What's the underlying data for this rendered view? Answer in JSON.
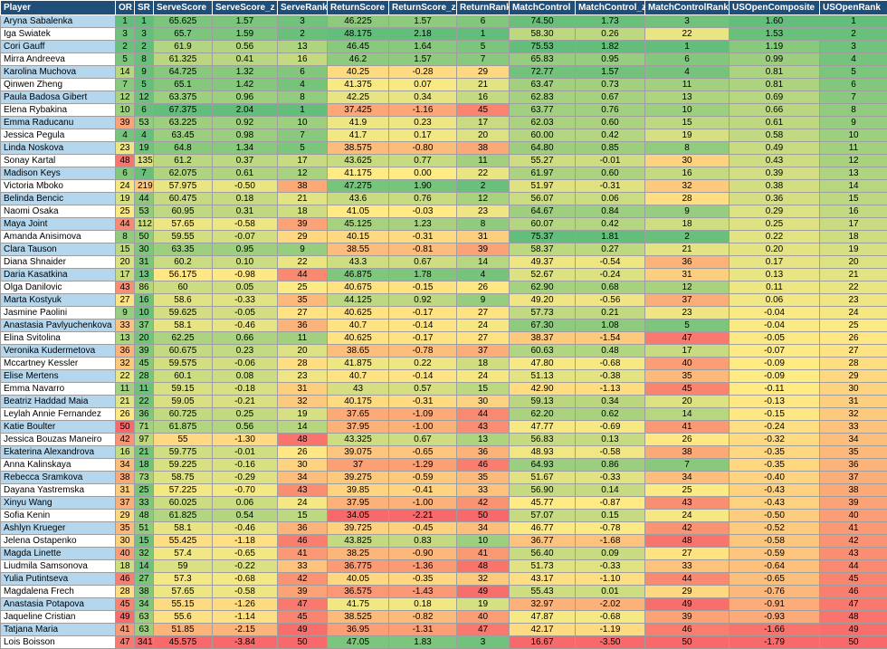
{
  "headers": [
    "Player",
    "OR",
    "SR",
    "ServeScore",
    "ServeScore_z",
    "ServeRank",
    "ReturnScore",
    "ReturnScore_z",
    "ReturnRank",
    "MatchControl",
    "MatchControl_z",
    "MatchControlRank",
    "USOpenComposite",
    "USOpenRank"
  ],
  "colors": {
    "header_bg": "#1f4e79",
    "player_blue": "#b4d7ee",
    "scale_low": "#f8696b",
    "scale_mid": "#ffeb84",
    "scale_high": "#63be7b"
  },
  "rows": [
    [
      "Aryna Sabalenka",
      "1",
      "1",
      "65.625",
      "1.57",
      "3",
      "46.225",
      "1.57",
      "6",
      "74.50",
      "1.73",
      "3",
      "1.60",
      "1"
    ],
    [
      "Iga Swiatek",
      "3",
      "3",
      "65.7",
      "1.59",
      "2",
      "48.175",
      "2.18",
      "1",
      "58.30",
      "0.26",
      "22",
      "1.53",
      "2"
    ],
    [
      "Cori Gauff",
      "2",
      "2",
      "61.9",
      "0.56",
      "13",
      "46.45",
      "1.64",
      "5",
      "75.53",
      "1.82",
      "1",
      "1.19",
      "3"
    ],
    [
      "Mirra Andreeva",
      "5",
      "8",
      "61.325",
      "0.41",
      "16",
      "46.2",
      "1.57",
      "7",
      "65.83",
      "0.95",
      "6",
      "0.99",
      "4"
    ],
    [
      "Karolina Muchova",
      "14",
      "9",
      "64.725",
      "1.32",
      "6",
      "40.25",
      "-0.28",
      "29",
      "72.77",
      "1.57",
      "4",
      "0.81",
      "5"
    ],
    [
      "Qinwen Zheng",
      "7",
      "5",
      "65.1",
      "1.42",
      "4",
      "41.375",
      "0.07",
      "21",
      "63.47",
      "0.73",
      "11",
      "0.81",
      "6"
    ],
    [
      "Paula Badosa Gibert",
      "12",
      "12",
      "63.375",
      "0.96",
      "8",
      "42.25",
      "0.34",
      "16",
      "62.83",
      "0.67",
      "13",
      "0.69",
      "7"
    ],
    [
      "Elena Rybakina",
      "10",
      "6",
      "67.375",
      "2.04",
      "1",
      "37.425",
      "-1.16",
      "45",
      "63.77",
      "0.76",
      "10",
      "0.66",
      "8"
    ],
    [
      "Emma Raducanu",
      "39",
      "53",
      "63.225",
      "0.92",
      "10",
      "41.9",
      "0.23",
      "17",
      "62.03",
      "0.60",
      "15",
      "0.61",
      "9"
    ],
    [
      "Jessica Pegula",
      "4",
      "4",
      "63.45",
      "0.98",
      "7",
      "41.7",
      "0.17",
      "20",
      "60.00",
      "0.42",
      "19",
      "0.58",
      "10"
    ],
    [
      "Linda Noskova",
      "23",
      "19",
      "64.8",
      "1.34",
      "5",
      "38.575",
      "-0.80",
      "38",
      "64.80",
      "0.85",
      "8",
      "0.49",
      "11"
    ],
    [
      "Sonay Kartal",
      "48",
      "135",
      "61.2",
      "0.37",
      "17",
      "43.625",
      "0.77",
      "11",
      "55.27",
      "-0.01",
      "30",
      "0.43",
      "12"
    ],
    [
      "Madison Keys",
      "6",
      "7",
      "62.075",
      "0.61",
      "12",
      "41.175",
      "0.00",
      "22",
      "61.97",
      "0.60",
      "16",
      "0.39",
      "13"
    ],
    [
      "Victoria Mboko",
      "24",
      "219",
      "57.975",
      "-0.50",
      "38",
      "47.275",
      "1.90",
      "2",
      "51.97",
      "-0.31",
      "32",
      "0.38",
      "14"
    ],
    [
      "Belinda Bencic",
      "19",
      "44",
      "60.475",
      "0.18",
      "21",
      "43.6",
      "0.76",
      "12",
      "56.07",
      "0.06",
      "28",
      "0.36",
      "15"
    ],
    [
      "Naomi Osaka",
      "25",
      "53",
      "60.95",
      "0.31",
      "18",
      "41.05",
      "-0.03",
      "23",
      "64.67",
      "0.84",
      "9",
      "0.29",
      "16"
    ],
    [
      "Maya Joint",
      "44",
      "112",
      "57.65",
      "-0.58",
      "39",
      "45.125",
      "1.23",
      "8",
      "60.07",
      "0.42",
      "18",
      "0.25",
      "17"
    ],
    [
      "Amanda Anisimova",
      "8",
      "50",
      "59.55",
      "-0.07",
      "29",
      "40.15",
      "-0.31",
      "31",
      "75.37",
      "1.81",
      "2",
      "0.22",
      "18"
    ],
    [
      "Clara Tauson",
      "15",
      "30",
      "63.35",
      "0.95",
      "9",
      "38.55",
      "-0.81",
      "39",
      "58.37",
      "0.27",
      "21",
      "0.20",
      "19"
    ],
    [
      "Diana Shnaider",
      "20",
      "31",
      "60.2",
      "0.10",
      "22",
      "43.3",
      "0.67",
      "14",
      "49.37",
      "-0.54",
      "36",
      "0.17",
      "20"
    ],
    [
      "Daria Kasatkina",
      "17",
      "13",
      "56.175",
      "-0.98",
      "44",
      "46.875",
      "1.78",
      "4",
      "52.67",
      "-0.24",
      "31",
      "0.13",
      "21"
    ],
    [
      "Olga Danilovic",
      "43",
      "86",
      "60",
      "0.05",
      "25",
      "40.675",
      "-0.15",
      "26",
      "62.90",
      "0.68",
      "12",
      "0.11",
      "22"
    ],
    [
      "Marta Kostyuk",
      "27",
      "16",
      "58.6",
      "-0.33",
      "35",
      "44.125",
      "0.92",
      "9",
      "49.20",
      "-0.56",
      "37",
      "0.06",
      "23"
    ],
    [
      "Jasmine Paolini",
      "9",
      "10",
      "59.625",
      "-0.05",
      "27",
      "40.625",
      "-0.17",
      "27",
      "57.73",
      "0.21",
      "23",
      "-0.04",
      "24"
    ],
    [
      "Anastasia Pavlyuchenkova",
      "33",
      "37",
      "58.1",
      "-0.46",
      "36",
      "40.7",
      "-0.14",
      "24",
      "67.30",
      "1.08",
      "5",
      "-0.04",
      "25"
    ],
    [
      "Elina Svitolina",
      "13",
      "20",
      "62.25",
      "0.66",
      "11",
      "40.625",
      "-0.17",
      "27",
      "38.37",
      "-1.54",
      "47",
      "-0.05",
      "26"
    ],
    [
      "Veronika Kudermetova",
      "36",
      "39",
      "60.675",
      "0.23",
      "20",
      "38.65",
      "-0.78",
      "37",
      "60.63",
      "0.48",
      "17",
      "-0.07",
      "27"
    ],
    [
      "Mccartney Kessler",
      "32",
      "45",
      "59.575",
      "-0.06",
      "28",
      "41.875",
      "0.22",
      "18",
      "47.80",
      "-0.68",
      "40",
      "-0.09",
      "28"
    ],
    [
      "Elise Mertens",
      "22",
      "28",
      "60.1",
      "0.08",
      "23",
      "40.7",
      "-0.14",
      "24",
      "51.13",
      "-0.38",
      "35",
      "-0.09",
      "29"
    ],
    [
      "Emma Navarro",
      "11",
      "11",
      "59.15",
      "-0.18",
      "31",
      "43",
      "0.57",
      "15",
      "42.90",
      "-1.13",
      "45",
      "-0.11",
      "30"
    ],
    [
      "Beatriz Haddad Maia",
      "21",
      "22",
      "59.05",
      "-0.21",
      "32",
      "40.175",
      "-0.31",
      "30",
      "59.13",
      "0.34",
      "20",
      "-0.13",
      "31"
    ],
    [
      "Leylah Annie Fernandez",
      "26",
      "36",
      "60.725",
      "0.25",
      "19",
      "37.65",
      "-1.09",
      "44",
      "62.20",
      "0.62",
      "14",
      "-0.15",
      "32"
    ],
    [
      "Katie Boulter",
      "50",
      "71",
      "61.875",
      "0.56",
      "14",
      "37.95",
      "-1.00",
      "43",
      "47.77",
      "-0.69",
      "41",
      "-0.24",
      "33"
    ],
    [
      "Jessica Bouzas Maneiro",
      "42",
      "97",
      "55",
      "-1.30",
      "48",
      "43.325",
      "0.67",
      "13",
      "56.83",
      "0.13",
      "26",
      "-0.32",
      "34"
    ],
    [
      "Ekaterina Alexandrova",
      "16",
      "21",
      "59.775",
      "-0.01",
      "26",
      "39.075",
      "-0.65",
      "36",
      "48.93",
      "-0.58",
      "38",
      "-0.35",
      "35"
    ],
    [
      "Anna Kalinskaya",
      "34",
      "18",
      "59.225",
      "-0.16",
      "30",
      "37",
      "-1.29",
      "46",
      "64.93",
      "0.86",
      "7",
      "-0.35",
      "36"
    ],
    [
      "Rebecca Sramkova",
      "38",
      "73",
      "58.75",
      "-0.29",
      "34",
      "39.275",
      "-0.59",
      "35",
      "51.67",
      "-0.33",
      "34",
      "-0.40",
      "37"
    ],
    [
      "Dayana Yastremska",
      "31",
      "25",
      "57.225",
      "-0.70",
      "43",
      "39.85",
      "-0.41",
      "33",
      "56.90",
      "0.14",
      "25",
      "-0.43",
      "38"
    ],
    [
      "Xinyu Wang",
      "37",
      "33",
      "60.025",
      "0.06",
      "24",
      "37.95",
      "-1.00",
      "42",
      "45.77",
      "-0.87",
      "43",
      "-0.43",
      "39"
    ],
    [
      "Sofia Kenin",
      "29",
      "48",
      "61.825",
      "0.54",
      "15",
      "34.05",
      "-2.21",
      "50",
      "57.07",
      "0.15",
      "24",
      "-0.50",
      "40"
    ],
    [
      "Ashlyn Krueger",
      "35",
      "51",
      "58.1",
      "-0.46",
      "36",
      "39.725",
      "-0.45",
      "34",
      "46.77",
      "-0.78",
      "42",
      "-0.52",
      "41"
    ],
    [
      "Jelena Ostapenko",
      "30",
      "15",
      "55.425",
      "-1.18",
      "46",
      "43.825",
      "0.83",
      "10",
      "36.77",
      "-1.68",
      "48",
      "-0.58",
      "42"
    ],
    [
      "Magda Linette",
      "40",
      "32",
      "57.4",
      "-0.65",
      "41",
      "38.25",
      "-0.90",
      "41",
      "56.40",
      "0.09",
      "27",
      "-0.59",
      "43"
    ],
    [
      "Liudmila Samsonova",
      "18",
      "14",
      "59",
      "-0.22",
      "33",
      "36.775",
      "-1.36",
      "48",
      "51.73",
      "-0.33",
      "33",
      "-0.64",
      "44"
    ],
    [
      "Yulia Putintseva",
      "46",
      "27",
      "57.3",
      "-0.68",
      "42",
      "40.05",
      "-0.35",
      "32",
      "43.17",
      "-1.10",
      "44",
      "-0.65",
      "45"
    ],
    [
      "Magdalena Frech",
      "28",
      "38",
      "57.65",
      "-0.58",
      "39",
      "36.575",
      "-1.43",
      "49",
      "55.43",
      "0.01",
      "29",
      "-0.76",
      "46"
    ],
    [
      "Anastasia Potapova",
      "45",
      "34",
      "55.15",
      "-1.26",
      "47",
      "41.75",
      "0.18",
      "19",
      "32.97",
      "-2.02",
      "49",
      "-0.91",
      "47"
    ],
    [
      "Jaqueline Cristian",
      "49",
      "63",
      "55.6",
      "-1.14",
      "45",
      "38.525",
      "-0.82",
      "40",
      "47.87",
      "-0.68",
      "39",
      "-0.93",
      "48"
    ],
    [
      "Tatjana Maria",
      "41",
      "63",
      "51.85",
      "-2.15",
      "49",
      "36.95",
      "-1.31",
      "47",
      "42.17",
      "-1.19",
      "46",
      "-1.66",
      "49"
    ],
    [
      "Lois Boisson",
      "47",
      "341",
      "45.575",
      "-3.84",
      "50",
      "47.05",
      "1.83",
      "3",
      "16.67",
      "-3.50",
      "50",
      "-1.79",
      "50"
    ]
  ]
}
